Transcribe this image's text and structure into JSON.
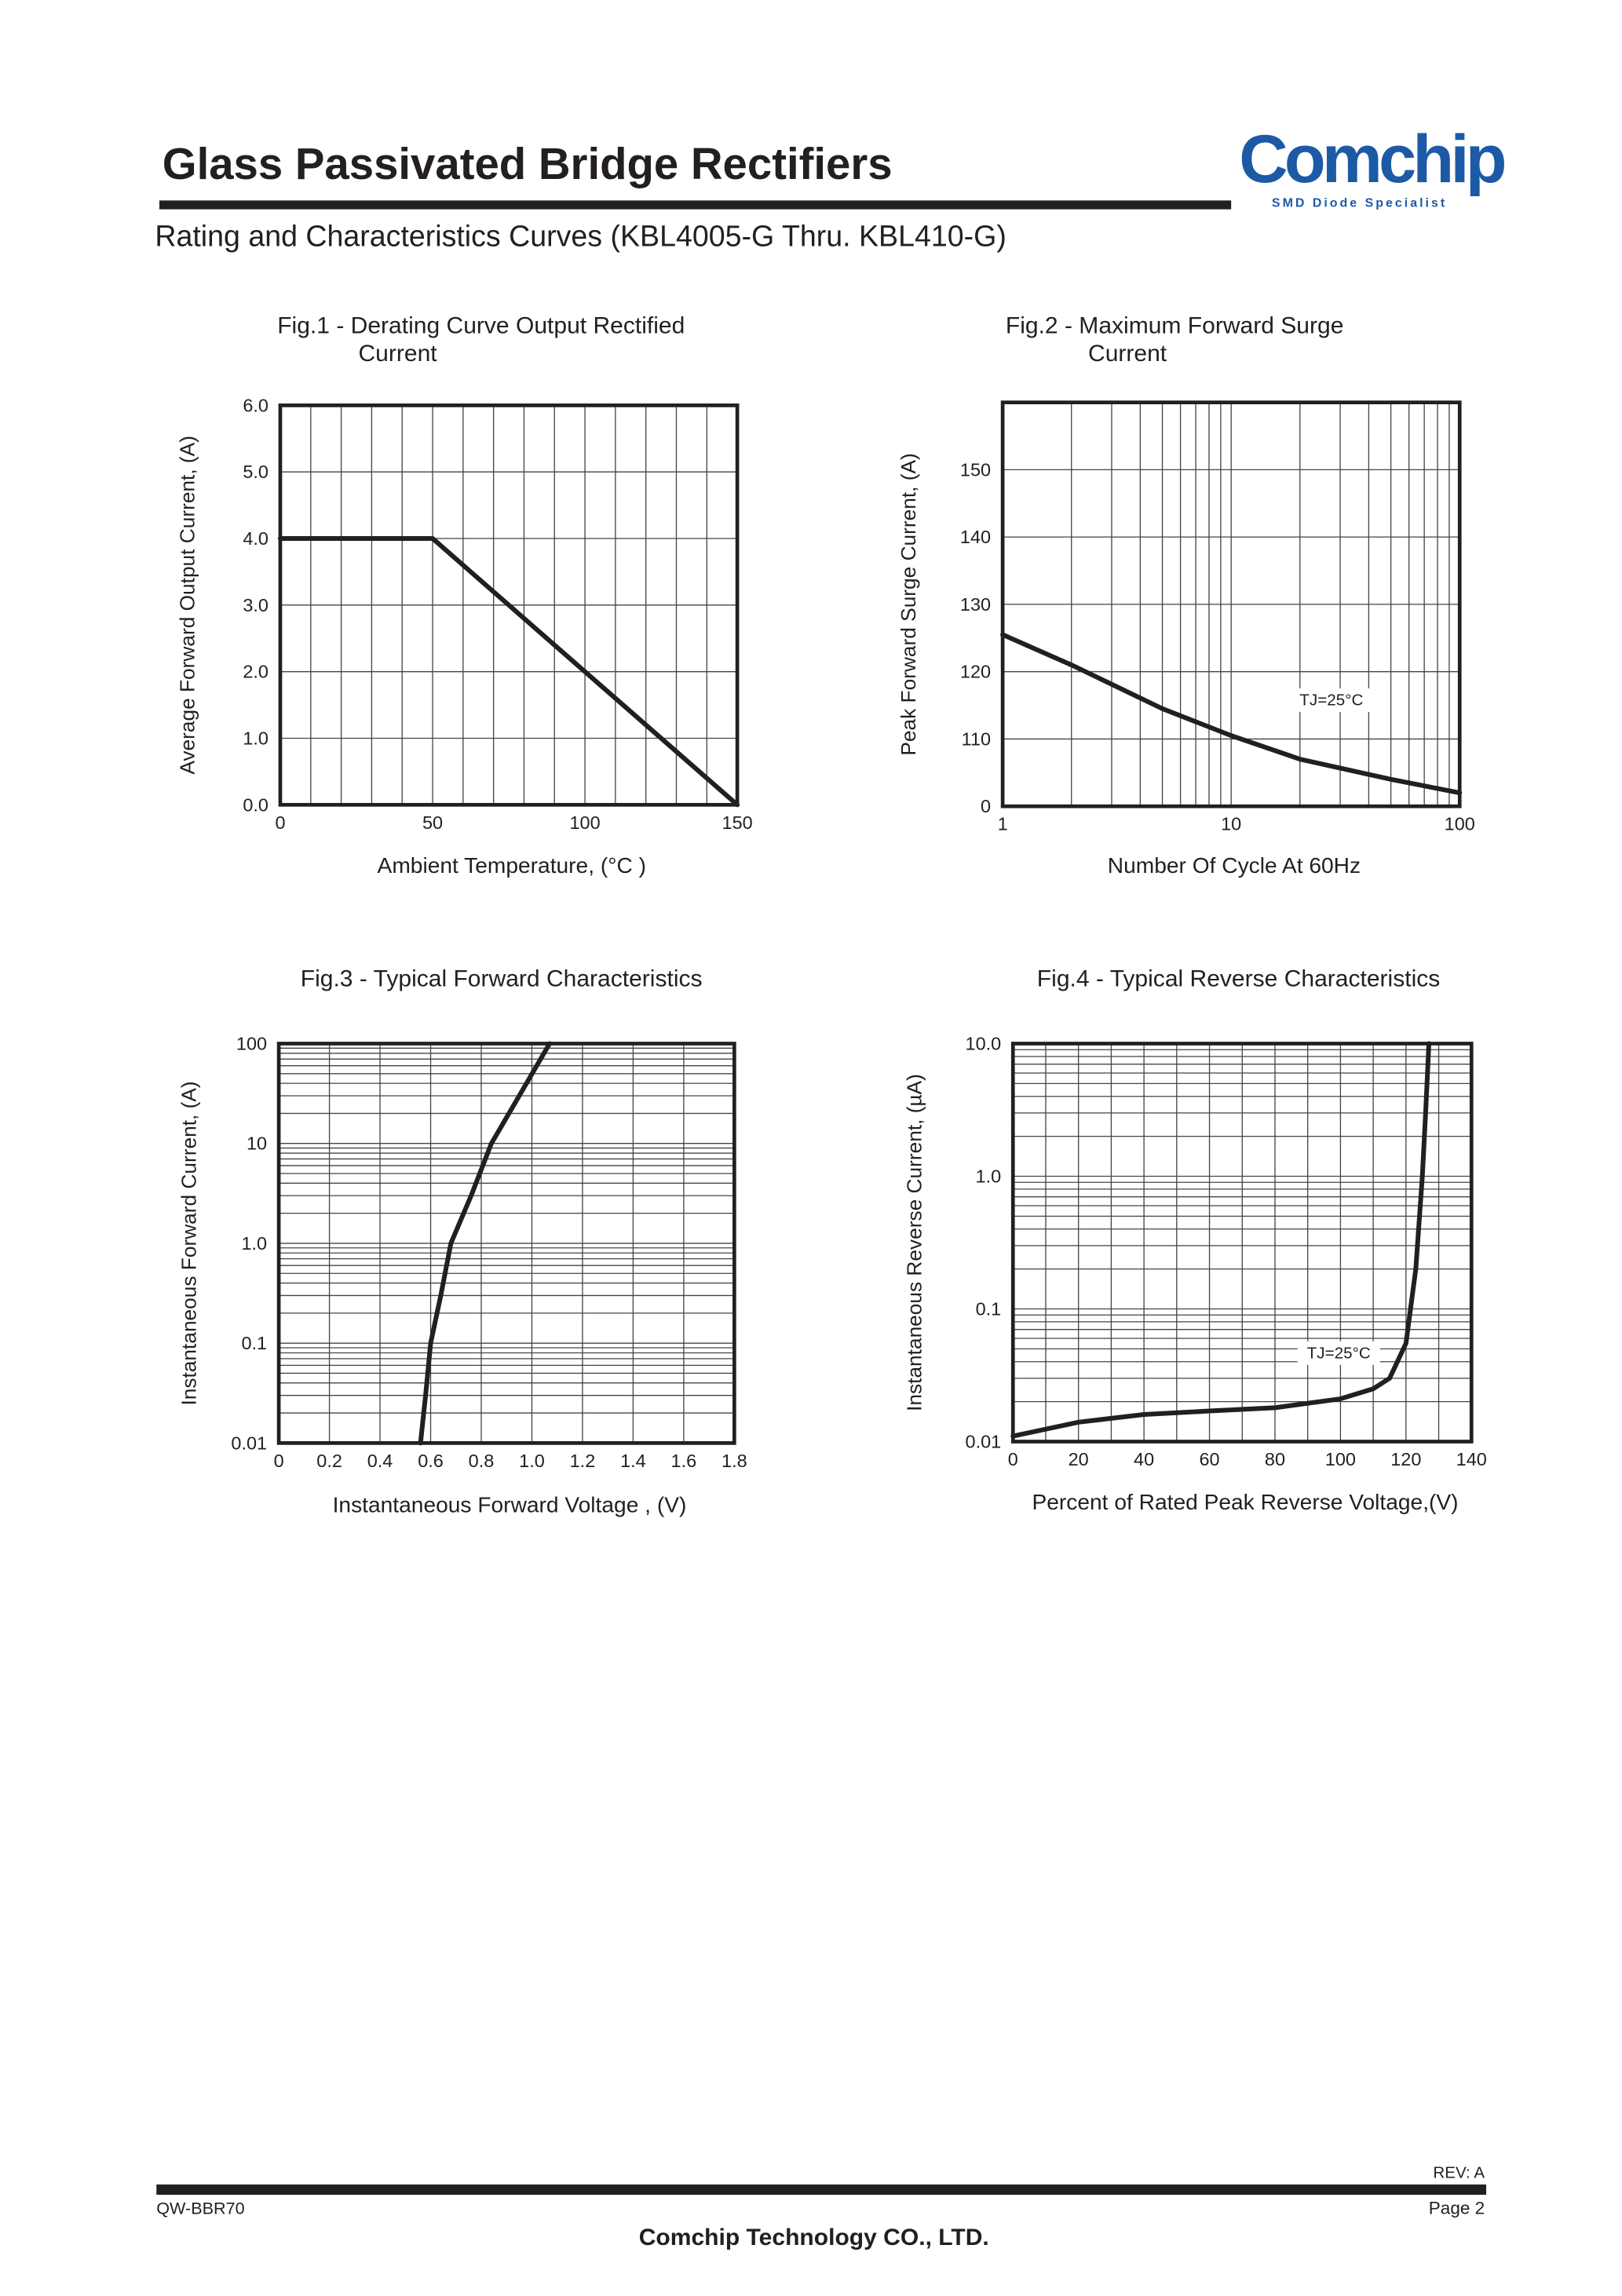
{
  "header": {
    "title": "Glass Passivated  Bridge Rectifiers",
    "logo": "Comchip",
    "logo_tagline": "SMD Diode Specialist",
    "subtitle": "Rating and Characteristics Curves (KBL4005-G Thru. KBL410-G)"
  },
  "chart_data": [
    {
      "type": "line",
      "title": [
        "Fig.1 - Derating Curve Output Rectified",
        "Current"
      ],
      "x_label": "Ambient  Temperature, (°C  )",
      "y_label": "Average Forward Output Current, (A)",
      "x": [
        0,
        50,
        150
      ],
      "values": [
        4.0,
        4.0,
        0
      ],
      "color": "#231f20",
      "xlim": [
        0,
        150
      ],
      "xticks": [
        0,
        50,
        100,
        150
      ],
      "ylim": [
        0,
        6
      ],
      "yticks": [
        {
          "value": 0,
          "label": "0.0"
        },
        {
          "value": 1,
          "label": "1.0"
        },
        {
          "value": 2,
          "label": "2.0"
        },
        {
          "value": 3,
          "label": "3.0"
        },
        {
          "value": 4,
          "label": "4.0"
        },
        {
          "value": 5,
          "label": "5.0"
        },
        {
          "value": 6,
          "label": "6.0"
        }
      ],
      "xgrid": [
        0,
        10,
        20,
        30,
        40,
        50,
        60,
        70,
        80,
        90,
        100,
        110,
        120,
        130,
        140,
        150
      ],
      "ygrid": [
        0,
        1,
        2,
        3,
        4,
        5,
        6
      ]
    },
    {
      "type": "line",
      "title": [
        "Fig.2 - Maximum Forward Surge",
        "Current"
      ],
      "x_label": "Number Of Cycle At 60Hz",
      "y_label": "Peak Forward Surge Current, (A)",
      "annotation": "TJ=25°C",
      "x": [
        1,
        2,
        5,
        10,
        20,
        50,
        100
      ],
      "values": [
        125.5,
        121,
        114.5,
        110.5,
        107,
        104,
        102
      ],
      "color": "#231f20",
      "xscale": "log",
      "xlim": [
        1,
        100
      ],
      "xticks": [
        1,
        10,
        100
      ],
      "ylim": [
        100,
        160
      ],
      "yticks": [
        {
          "value": 100,
          "label": "0"
        },
        110,
        120,
        130,
        140,
        150
      ],
      "xgrid": [
        1,
        2,
        3,
        4,
        5,
        6,
        7,
        8,
        9,
        10,
        20,
        30,
        40,
        50,
        60,
        70,
        80,
        90,
        100
      ],
      "ygrid": [
        100,
        110,
        120,
        130,
        140,
        150,
        160
      ]
    },
    {
      "type": "line",
      "title": [
        "Fig.3 - Typical Forward Characteristics"
      ],
      "x_label": "Instantaneous Forward  Voltage , (V)",
      "y_label": "Instantaneous Forward Current, (A)",
      "x": [
        0.56,
        0.58,
        0.6,
        0.64,
        0.68,
        0.76,
        0.84,
        0.95,
        1.07
      ],
      "values": [
        0.01,
        0.03,
        0.1,
        0.3,
        1,
        3,
        10,
        30,
        100
      ],
      "color": "#231f20",
      "yscale": "log",
      "xlim": [
        0,
        1.8
      ],
      "xticks": [
        0,
        0.2,
        0.4,
        0.6,
        0.8,
        {
          "value": 1,
          "label": "1.0"
        },
        1.2,
        1.4,
        1.6,
        1.8
      ],
      "ylim": [
        0.01,
        100
      ],
      "yticks": [
        0.01,
        0.1,
        {
          "value": 1,
          "label": "1.0"
        },
        10,
        100
      ],
      "xgrid": [
        0,
        0.2,
        0.4,
        0.6,
        0.8,
        1,
        1.2,
        1.4,
        1.6,
        1.8
      ],
      "ygrid": [
        0.01,
        0.02,
        0.03,
        0.04,
        0.05,
        0.06,
        0.07,
        0.08,
        0.09,
        0.1,
        0.2,
        0.3,
        0.4,
        0.5,
        0.6,
        0.7,
        0.8,
        0.9,
        1,
        2,
        3,
        4,
        5,
        6,
        7,
        8,
        9,
        10,
        20,
        30,
        40,
        50,
        60,
        70,
        80,
        90,
        100
      ]
    },
    {
      "type": "line",
      "title": [
        "Fig.4 - Typical Reverse Characteristics"
      ],
      "x_label": "Percent of  Rated Peak Reverse Voltage,(V)",
      "y_label": "Instantaneous Reverse Current, (µA)",
      "annotation": "TJ=25°C",
      "x": [
        0,
        20,
        40,
        60,
        80,
        100,
        110,
        115,
        120,
        123,
        125,
        126,
        127
      ],
      "values": [
        0.011,
        0.014,
        0.016,
        0.017,
        0.018,
        0.021,
        0.025,
        0.03,
        0.055,
        0.2,
        1,
        3,
        10
      ],
      "color": "#231f20",
      "yscale": "log",
      "xlim": [
        0,
        140
      ],
      "xticks": [
        0,
        20,
        40,
        60,
        80,
        100,
        120,
        140
      ],
      "ylim": [
        0.01,
        10
      ],
      "yticks": [
        0.01,
        0.1,
        {
          "value": 1,
          "label": "1.0"
        },
        {
          "value": 10,
          "label": "10.0"
        }
      ],
      "xgrid": [
        0,
        10,
        20,
        30,
        40,
        50,
        60,
        70,
        80,
        90,
        100,
        110,
        120,
        130,
        140
      ],
      "ygrid": [
        0.01,
        0.02,
        0.03,
        0.04,
        0.05,
        0.06,
        0.07,
        0.08,
        0.09,
        0.1,
        0.2,
        0.3,
        0.4,
        0.5,
        0.6,
        0.7,
        0.8,
        0.9,
        1,
        2,
        3,
        4,
        5,
        6,
        7,
        8,
        9,
        10
      ]
    }
  ],
  "footer": {
    "rev": "REV: A",
    "doc_no": "QW-BBR70",
    "page": "Page 2",
    "company": "Comchip Technology CO., LTD."
  }
}
